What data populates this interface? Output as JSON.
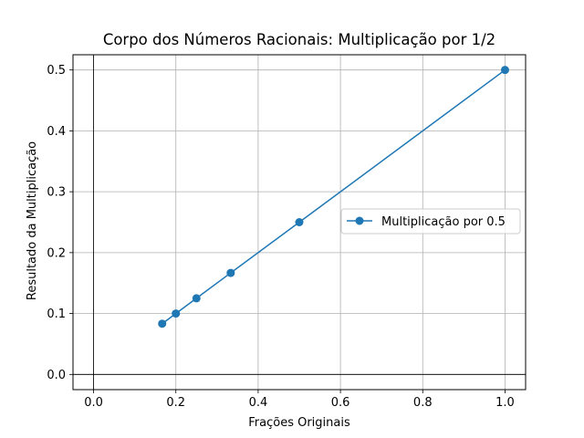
{
  "chart_data": {
    "type": "line",
    "title": "Corpo dos Números Racionais: Multiplicação por 1/2",
    "xlabel": "Frações Originais",
    "ylabel": "Resultado da Multiplicação",
    "xlim": [
      -0.05,
      1.05
    ],
    "ylim": [
      -0.025,
      0.525
    ],
    "xticks": [
      0.0,
      0.2,
      0.4,
      0.6,
      0.8,
      1.0
    ],
    "xtick_labels": [
      "0.0",
      "0.2",
      "0.4",
      "0.6",
      "0.8",
      "1.0"
    ],
    "yticks": [
      0.0,
      0.1,
      0.2,
      0.3,
      0.4,
      0.5
    ],
    "ytick_labels": [
      "0.0",
      "0.1",
      "0.2",
      "0.3",
      "0.4",
      "0.5"
    ],
    "grid": true,
    "reference_lines": {
      "x": 0,
      "y": 0
    },
    "legend_position": "center-right",
    "series": [
      {
        "name": "Multiplicação por 0.5",
        "color": "#1f77b4",
        "marker": "circle",
        "x": [
          0.1667,
          0.2,
          0.25,
          0.3333,
          0.5,
          1.0
        ],
        "y": [
          0.0833,
          0.1,
          0.125,
          0.1667,
          0.25,
          0.5
        ]
      }
    ]
  }
}
